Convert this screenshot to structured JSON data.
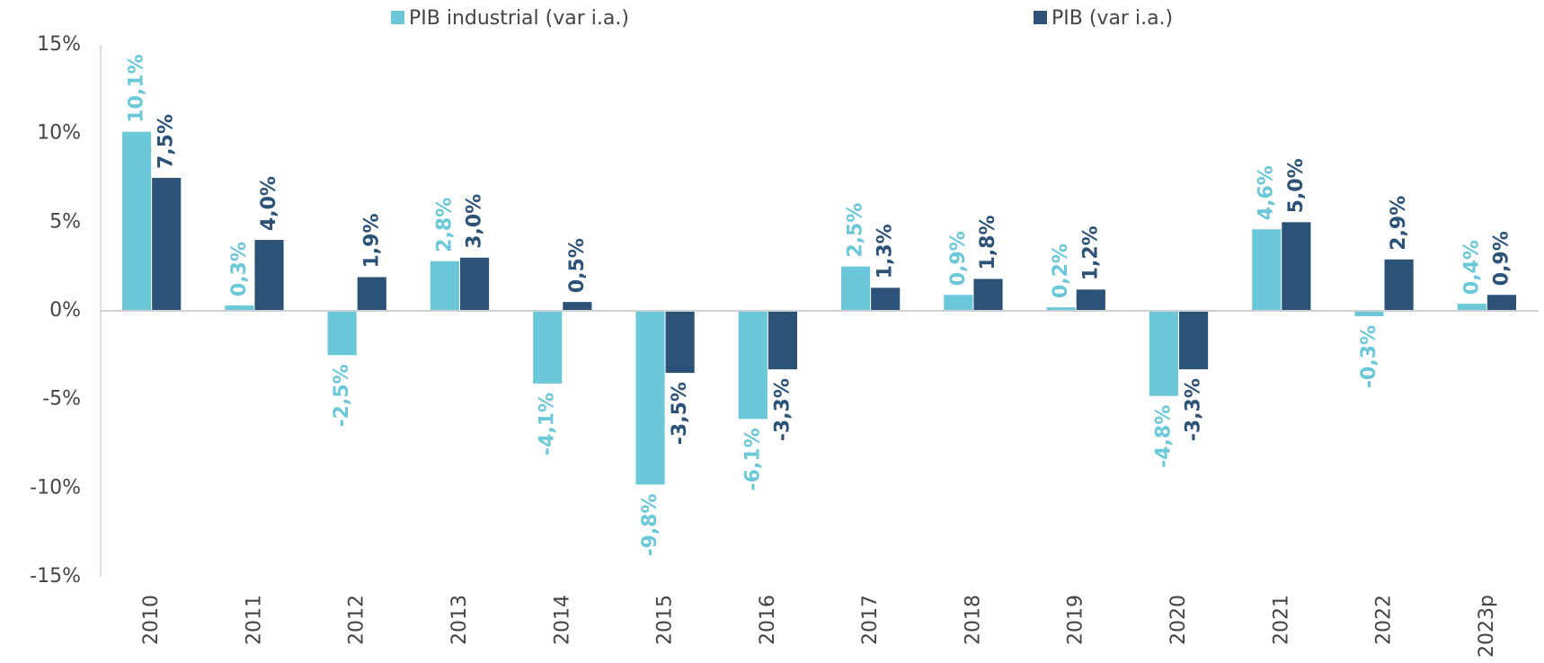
{
  "chart_data": {
    "type": "bar",
    "categories": [
      "2010",
      "2011",
      "2012",
      "2013",
      "2014",
      "2015",
      "2016",
      "2017",
      "2018",
      "2019",
      "2020",
      "2021",
      "2022",
      "2023p"
    ],
    "series": [
      {
        "name": "PIB industrial (var i.a.)",
        "color": "#6ac8d9",
        "values": [
          10.1,
          0.3,
          -2.5,
          2.8,
          -4.1,
          -9.8,
          -6.1,
          2.5,
          0.9,
          0.2,
          -4.8,
          4.6,
          -0.3,
          0.4
        ],
        "value_labels": [
          "10,1%",
          "0,3%",
          "-2,5%",
          "2,8%",
          "-4,1%",
          "-9,8%",
          "-6,1%",
          "2,5%",
          "0,9%",
          "0,2%",
          "-4,8%",
          "4,6%",
          "-0,3%",
          "0,4%"
        ]
      },
      {
        "name": "PIB (var i.a.)",
        "color": "#2c5278",
        "values": [
          7.5,
          4.0,
          1.9,
          3.0,
          0.5,
          -3.5,
          -3.3,
          1.3,
          1.8,
          1.2,
          -3.3,
          5.0,
          2.9,
          0.9
        ],
        "value_labels": [
          "7,5%",
          "4,0%",
          "1,9%",
          "3,0%",
          "0,5%",
          "-3,5%",
          "-3,3%",
          "1,3%",
          "1,8%",
          "1,2%",
          "-3,3%",
          "5,0%",
          "2,9%",
          "0,9%"
        ]
      }
    ],
    "ylim": [
      -15,
      15
    ],
    "yticks": [
      {
        "value": -15,
        "label": "-15%"
      },
      {
        "value": -10,
        "label": "-10%"
      },
      {
        "value": -5,
        "label": "-5%"
      },
      {
        "value": 0,
        "label": "0%"
      },
      {
        "value": 5,
        "label": "5%"
      },
      {
        "value": 10,
        "label": "10%"
      },
      {
        "value": 15,
        "label": "15%"
      }
    ],
    "legend": "top"
  }
}
